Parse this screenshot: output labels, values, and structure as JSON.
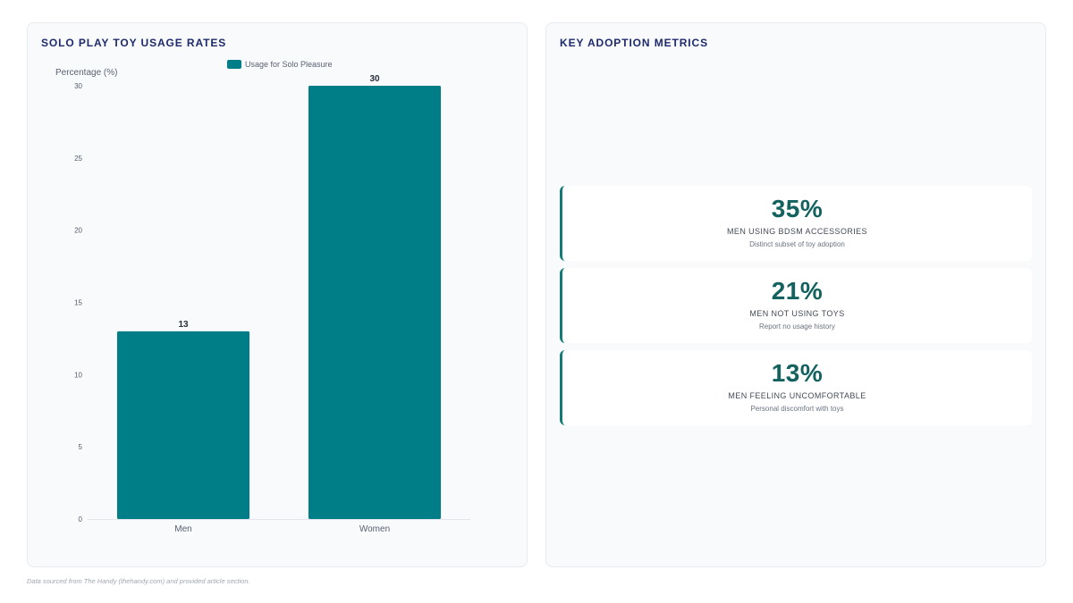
{
  "left_panel": {
    "title": "SOLO PLAY TOY USAGE RATES"
  },
  "right_panel": {
    "title": "KEY ADOPTION METRICS"
  },
  "chart_data": {
    "type": "bar",
    "categories": [
      "Men",
      "Women"
    ],
    "series": [
      {
        "name": "Usage for Solo Pleasure",
        "values": [
          13,
          30
        ],
        "color": "#007e87"
      }
    ],
    "ylabel": "Percentage (%)",
    "ylim": [
      0,
      30
    ],
    "yticks": [
      0,
      5,
      10,
      15,
      20,
      25,
      30
    ],
    "data_labels": [
      "13",
      "30"
    ],
    "legend_position": "top-center",
    "grid": false
  },
  "metrics": [
    {
      "value": "35%",
      "label": "MEN USING BDSM ACCESSORIES",
      "sub": "Distinct subset of toy adoption"
    },
    {
      "value": "21%",
      "label": "MEN NOT USING TOYS",
      "sub": "Report no usage history"
    },
    {
      "value": "13%",
      "label": "MEN FEELING UNCOMFORTABLE",
      "sub": "Personal discomfort with toys"
    }
  ],
  "colors": {
    "accent": "#147a75",
    "bar": "#007e87",
    "title": "#1e2a6b"
  },
  "footnote": "Data sourced from The Handy (thehandy.com) and provided article section."
}
